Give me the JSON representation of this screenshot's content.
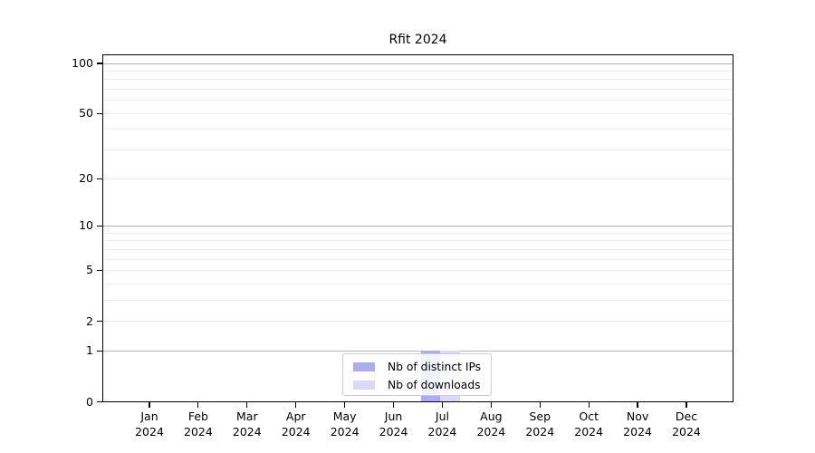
{
  "chart_data": {
    "type": "bar",
    "title": "Rfit 2024",
    "categories": [
      "Jan",
      "Feb",
      "Mar",
      "Apr",
      "May",
      "Jun",
      "Jul",
      "Aug",
      "Sep",
      "Oct",
      "Nov",
      "Dec"
    ],
    "x_tick_year": "2024",
    "series": [
      {
        "name": "Nb of distinct IPs",
        "color": "#acacee",
        "values": [
          0,
          0,
          0,
          0,
          0,
          0,
          1,
          0,
          0,
          0,
          0,
          0
        ]
      },
      {
        "name": "Nb of downloads",
        "color": "#dadaf7",
        "values": [
          0,
          0,
          0,
          0,
          0,
          0,
          1,
          0,
          0,
          0,
          0,
          0
        ]
      }
    ],
    "y_ticks": [
      0,
      1,
      2,
      5,
      10,
      20,
      50,
      100
    ],
    "y_scale": "log10(value+1)",
    "ylim": [
      0,
      100
    ],
    "xlabel": "",
    "ylabel": "",
    "grid": "horizontal major and minor log gridlines",
    "legend_position": "bottom-center"
  },
  "colors": {
    "bar_distinct_ips": "#acacee",
    "bar_downloads": "#dadaf7",
    "grid_major": "#b4b4b4",
    "grid_minor": "#ebebeb",
    "axis": "#000000",
    "legend_border": "#cccccc",
    "background": "#ffffff"
  }
}
